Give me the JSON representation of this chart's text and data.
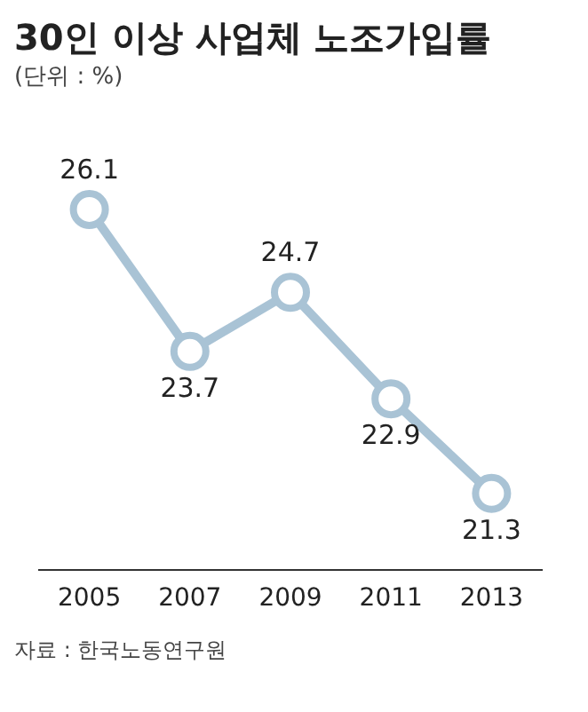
{
  "chart_data": {
    "type": "line",
    "title": "30인 이상 사업체 노조가입률",
    "subtitle": "(단위 : %)",
    "categories": [
      "2005",
      "2007",
      "2009",
      "2011",
      "2013"
    ],
    "series": [
      {
        "color": "#a9c3d5",
        "values": [
          26.1,
          23.7,
          24.7,
          22.9,
          21.3
        ]
      }
    ],
    "data_labels": true,
    "marker": "circle",
    "line_style": "solid",
    "grid": false,
    "legend": false,
    "tick_labels": "x",
    "annotations": [
      "자료 : 한국노동연구원"
    ]
  }
}
